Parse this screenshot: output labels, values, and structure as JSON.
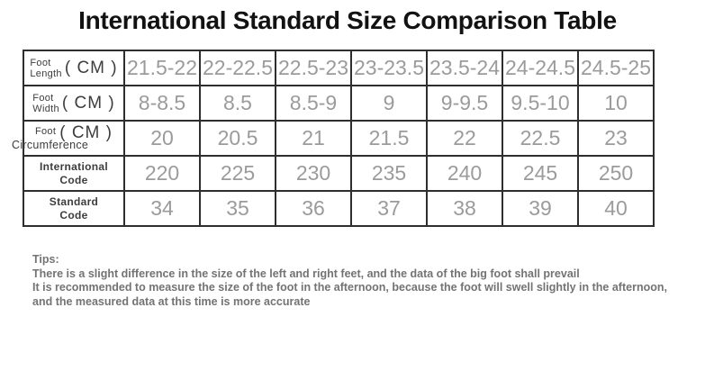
{
  "page": {
    "title": "International Standard Size Comparison Table"
  },
  "table": {
    "rows": [
      {
        "label_line1": "Foot",
        "label_line2": "Length",
        "unit": "( CM )",
        "values": [
          "21.5-22",
          "22-22.5",
          "22.5-23",
          "23-23.5",
          "23.5-24",
          "24-24.5",
          "24.5-25"
        ]
      },
      {
        "label_line1": "Foot",
        "label_line2": "Width",
        "unit": "( CM )",
        "values": [
          "8-8.5",
          "8.5",
          "8.5-9",
          "9",
          "9-9.5",
          "9.5-10",
          "10"
        ]
      },
      {
        "label_line1": "Foot",
        "label_line2": "Circumference",
        "unit": "( CM )",
        "values": [
          "20",
          "20.5",
          "21",
          "21.5",
          "22",
          "22.5",
          "23"
        ]
      },
      {
        "label_line1": "International",
        "label_line2": "Code",
        "unit": "",
        "values": [
          "220",
          "225",
          "230",
          "235",
          "240",
          "245",
          "250"
        ]
      },
      {
        "label_line1": "Standard",
        "label_line2": "Code",
        "unit": "",
        "values": [
          "34",
          "35",
          "36",
          "37",
          "38",
          "39",
          "40"
        ]
      }
    ]
  },
  "tips": {
    "heading": "Tips:",
    "line1": "There is a slight difference in the size of the left and right feet, and the data of the big foot shall prevail",
    "line2": "It is recommended to measure the size of the foot in the afternoon, because the foot will swell slightly in the afternoon,",
    "line3": "and the measured data at this time is more accurate"
  },
  "colors": {
    "background": "#ffffff",
    "title_text": "#121212",
    "table_border": "#2e2e2e",
    "label_text": "#3d3d3d",
    "value_text": "#9b9b9b",
    "tips_text": "#737373"
  },
  "chart_data": {
    "type": "table",
    "title": "International Standard Size Comparison Table",
    "row_headers": [
      "Foot Length ( CM )",
      "Foot Width ( CM )",
      "Foot Circumference ( CM )",
      "International Code",
      "Standard Code"
    ],
    "rows": [
      [
        "21.5-22",
        "22-22.5",
        "22.5-23",
        "23-23.5",
        "23.5-24",
        "24-24.5",
        "24.5-25"
      ],
      [
        "8-8.5",
        "8.5",
        "8.5-9",
        "9",
        "9-9.5",
        "9.5-10",
        "10"
      ],
      [
        "20",
        "20.5",
        "21",
        "21.5",
        "22",
        "22.5",
        "23"
      ],
      [
        "220",
        "225",
        "230",
        "235",
        "240",
        "245",
        "250"
      ],
      [
        "34",
        "35",
        "36",
        "37",
        "38",
        "39",
        "40"
      ]
    ],
    "notes": [
      "Tips:",
      "There is a slight difference in the size of the left and right feet, and the data of the big foot shall prevail",
      "It is recommended to measure the size of the foot in the afternoon, because the foot will swell slightly in the afternoon,",
      "and the measured data at this time is more accurate"
    ]
  }
}
